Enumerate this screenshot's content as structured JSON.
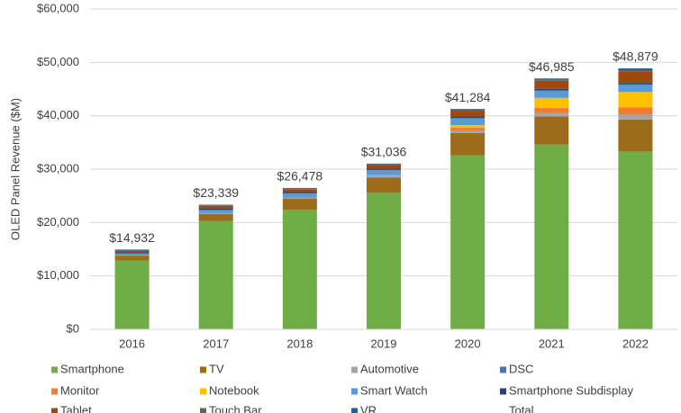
{
  "chart_data": {
    "type": "bar",
    "stacked": true,
    "y_label": "OLED Panel Revenue ($M)",
    "categories": [
      "2016",
      "2017",
      "2018",
      "2019",
      "2020",
      "2021",
      "2022"
    ],
    "series": [
      {
        "name": "Smartphone",
        "color": "#70ad47",
        "values": [
          12900,
          20300,
          22400,
          25600,
          32600,
          34600,
          33300
        ]
      },
      {
        "name": "TV",
        "color": "#9c6b1c",
        "values": [
          900,
          1300,
          2100,
          2800,
          4200,
          5300,
          6000
        ]
      },
      {
        "name": "Automotive",
        "color": "#a5a5a5",
        "values": [
          50,
          100,
          150,
          200,
          400,
          600,
          900
        ]
      },
      {
        "name": "DSC",
        "color": "#4472c4",
        "values": [
          50,
          50,
          50,
          50,
          50,
          50,
          50
        ]
      },
      {
        "name": "Monitor",
        "color": "#ed7d31",
        "values": [
          0,
          0,
          0,
          100,
          500,
          900,
          1300
        ]
      },
      {
        "name": "Notebook",
        "color": "#ffc000",
        "values": [
          0,
          0,
          0,
          100,
          500,
          1900,
          2900
        ]
      },
      {
        "name": "Smart Watch",
        "color": "#5b9bd5",
        "values": [
          300,
          600,
          800,
          1000,
          1300,
          1400,
          1400
        ]
      },
      {
        "name": "Smartphone Subdisplay",
        "color": "#264478",
        "values": [
          200,
          300,
          300,
          300,
          300,
          300,
          300
        ]
      },
      {
        "name": "Tablet",
        "color": "#9e480e",
        "values": [
          300,
          500,
          450,
          600,
          1100,
          1500,
          2200
        ]
      },
      {
        "name": "Touch Bar",
        "color": "#636363",
        "values": [
          0,
          100,
          100,
          150,
          200,
          200,
          200
        ]
      },
      {
        "name": "VR",
        "color": "#255e91",
        "values": [
          232,
          89,
          128,
          136,
          134,
          235,
          329
        ]
      }
    ],
    "total": {
      "name": "Total",
      "values": [
        14932,
        23339,
        26478,
        31036,
        41284,
        46985,
        48879
      ],
      "value_labels": [
        "$14,932",
        "$23,339",
        "$26,478",
        "$31,036",
        "$41,284",
        "$46,985",
        "$48,879"
      ]
    },
    "ylim": [
      0,
      60000
    ],
    "yticks": [
      {
        "value": 0,
        "label": "$0"
      },
      {
        "value": 10000,
        "label": "$10,000"
      },
      {
        "value": 20000,
        "label": "$20,000"
      },
      {
        "value": 30000,
        "label": "$30,000"
      },
      {
        "value": 40000,
        "label": "$40,000"
      },
      {
        "value": 50000,
        "label": "$50,000"
      },
      {
        "value": 60000,
        "label": "$60,000"
      }
    ],
    "grid": true
  }
}
